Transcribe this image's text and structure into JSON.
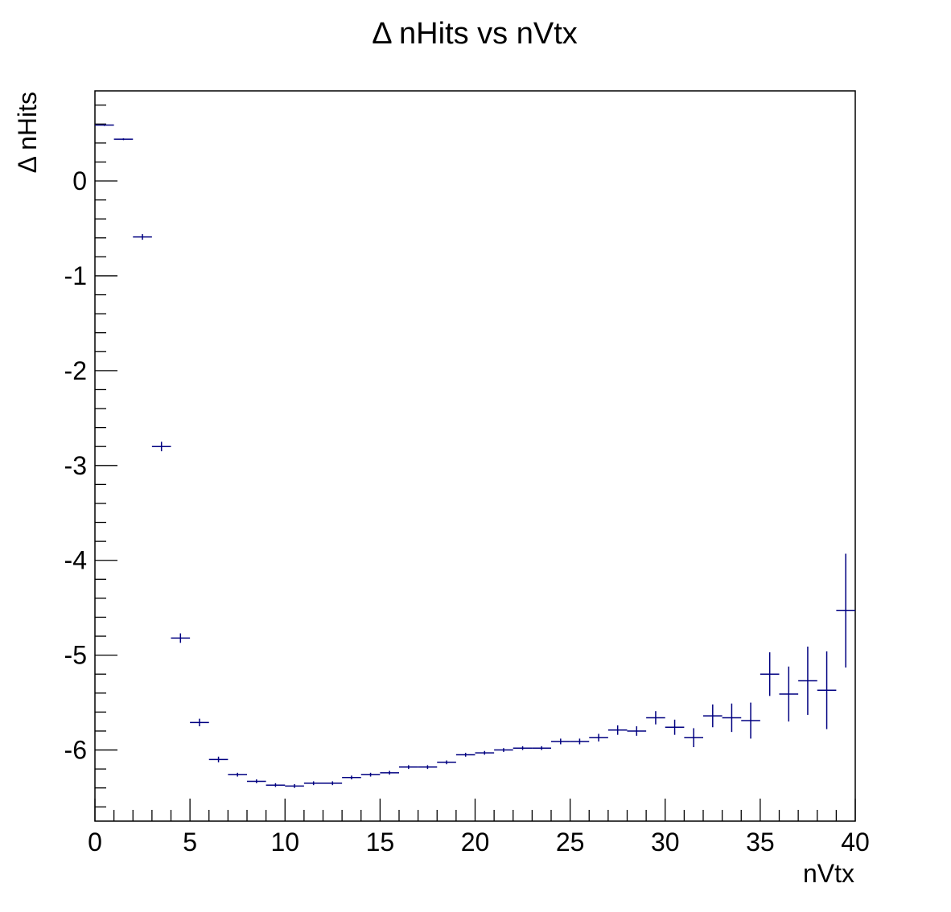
{
  "chart_data": {
    "type": "scatter",
    "title": "Δ nHits vs nVtx",
    "xlabel": "nVtx",
    "ylabel": "Δ nHits",
    "xlim": [
      0,
      40
    ],
    "ylim": [
      -6.75,
      0.95
    ],
    "x_ticks": [
      0,
      5,
      10,
      15,
      20,
      25,
      30,
      35,
      40
    ],
    "y_ticks": [
      0,
      -1,
      -2,
      -3,
      -4,
      -5,
      -6
    ],
    "grid": false,
    "legend": "none",
    "marker_color": "#000080",
    "points": [
      {
        "x": 0.5,
        "y": 0.59,
        "xerr": 0.5,
        "yerr": 0.01
      },
      {
        "x": 1.5,
        "y": 0.44,
        "xerr": 0.5,
        "yerr": 0.01
      },
      {
        "x": 2.5,
        "y": -0.59,
        "xerr": 0.5,
        "yerr": 0.03
      },
      {
        "x": 3.5,
        "y": -2.8,
        "xerr": 0.5,
        "yerr": 0.05
      },
      {
        "x": 4.5,
        "y": -4.82,
        "xerr": 0.5,
        "yerr": 0.05
      },
      {
        "x": 5.5,
        "y": -5.71,
        "xerr": 0.5,
        "yerr": 0.04
      },
      {
        "x": 6.5,
        "y": -6.1,
        "xerr": 0.5,
        "yerr": 0.03
      },
      {
        "x": 7.5,
        "y": -6.26,
        "xerr": 0.5,
        "yerr": 0.02
      },
      {
        "x": 8.5,
        "y": -6.33,
        "xerr": 0.5,
        "yerr": 0.02
      },
      {
        "x": 9.5,
        "y": -6.37,
        "xerr": 0.5,
        "yerr": 0.02
      },
      {
        "x": 10.5,
        "y": -6.38,
        "xerr": 0.5,
        "yerr": 0.02
      },
      {
        "x": 11.5,
        "y": -6.35,
        "xerr": 0.5,
        "yerr": 0.02
      },
      {
        "x": 12.5,
        "y": -6.35,
        "xerr": 0.5,
        "yerr": 0.02
      },
      {
        "x": 13.5,
        "y": -6.29,
        "xerr": 0.5,
        "yerr": 0.02
      },
      {
        "x": 14.5,
        "y": -6.26,
        "xerr": 0.5,
        "yerr": 0.02
      },
      {
        "x": 15.5,
        "y": -6.24,
        "xerr": 0.5,
        "yerr": 0.02
      },
      {
        "x": 16.5,
        "y": -6.18,
        "xerr": 0.5,
        "yerr": 0.02
      },
      {
        "x": 17.5,
        "y": -6.18,
        "xerr": 0.5,
        "yerr": 0.02
      },
      {
        "x": 18.5,
        "y": -6.13,
        "xerr": 0.5,
        "yerr": 0.02
      },
      {
        "x": 19.5,
        "y": -6.05,
        "xerr": 0.5,
        "yerr": 0.02
      },
      {
        "x": 20.5,
        "y": -6.03,
        "xerr": 0.5,
        "yerr": 0.02
      },
      {
        "x": 21.5,
        "y": -6.0,
        "xerr": 0.5,
        "yerr": 0.02
      },
      {
        "x": 22.5,
        "y": -5.98,
        "xerr": 0.5,
        "yerr": 0.02
      },
      {
        "x": 23.5,
        "y": -5.98,
        "xerr": 0.5,
        "yerr": 0.02
      },
      {
        "x": 24.5,
        "y": -5.91,
        "xerr": 0.5,
        "yerr": 0.03
      },
      {
        "x": 25.5,
        "y": -5.91,
        "xerr": 0.5,
        "yerr": 0.03
      },
      {
        "x": 26.5,
        "y": -5.87,
        "xerr": 0.5,
        "yerr": 0.04
      },
      {
        "x": 27.5,
        "y": -5.79,
        "xerr": 0.5,
        "yerr": 0.05
      },
      {
        "x": 28.5,
        "y": -5.8,
        "xerr": 0.5,
        "yerr": 0.05
      },
      {
        "x": 29.5,
        "y": -5.66,
        "xerr": 0.5,
        "yerr": 0.07
      },
      {
        "x": 30.5,
        "y": -5.76,
        "xerr": 0.5,
        "yerr": 0.08
      },
      {
        "x": 31.5,
        "y": -5.87,
        "xerr": 0.5,
        "yerr": 0.1
      },
      {
        "x": 32.5,
        "y": -5.64,
        "xerr": 0.5,
        "yerr": 0.12
      },
      {
        "x": 33.5,
        "y": -5.66,
        "xerr": 0.5,
        "yerr": 0.15
      },
      {
        "x": 34.5,
        "y": -5.69,
        "xerr": 0.5,
        "yerr": 0.19
      },
      {
        "x": 35.5,
        "y": -5.2,
        "xerr": 0.5,
        "yerr": 0.23
      },
      {
        "x": 36.5,
        "y": -5.41,
        "xerr": 0.5,
        "yerr": 0.29
      },
      {
        "x": 37.5,
        "y": -5.27,
        "xerr": 0.5,
        "yerr": 0.36
      },
      {
        "x": 38.5,
        "y": -5.37,
        "xerr": 0.5,
        "yerr": 0.41
      },
      {
        "x": 39.5,
        "y": -4.53,
        "xerr": 0.5,
        "yerr": 0.6
      }
    ]
  }
}
